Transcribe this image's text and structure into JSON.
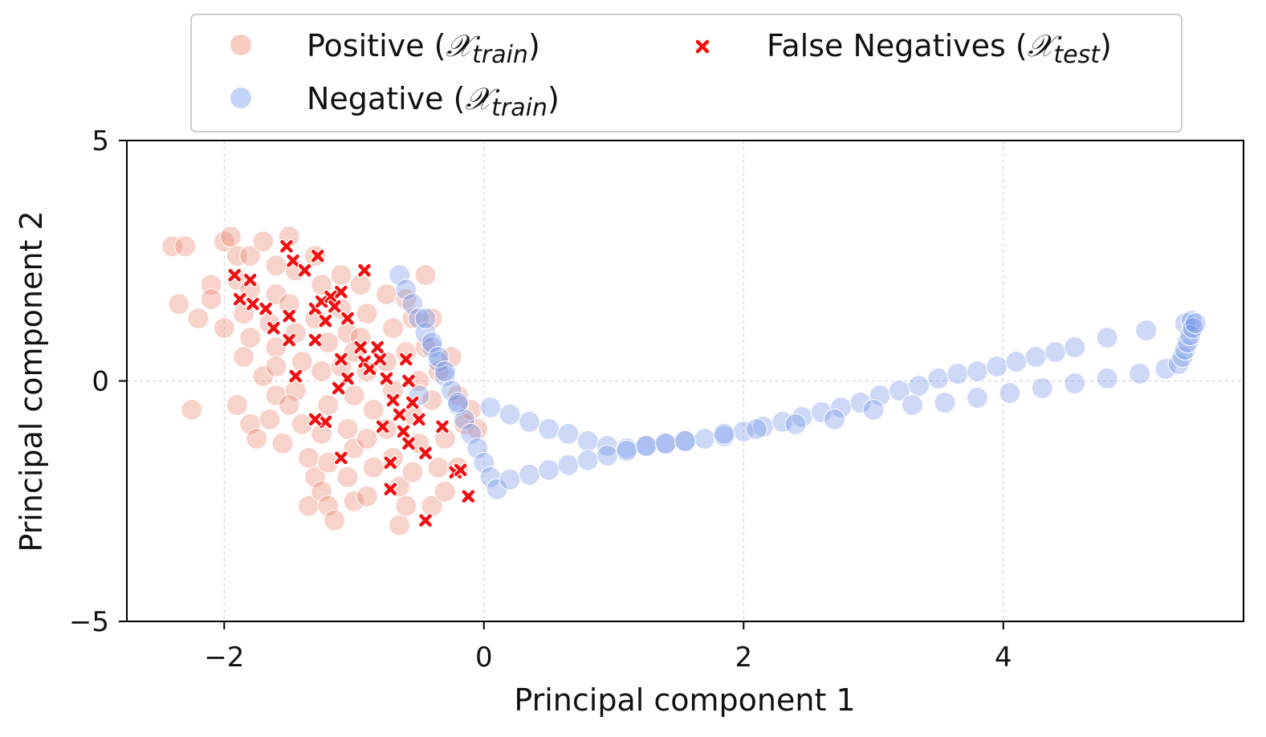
{
  "chart_data": {
    "type": "scatter",
    "title": "",
    "xlabel": "Principal component 1",
    "ylabel": "Principal component 2",
    "xlim": [
      -2.75,
      5.85
    ],
    "ylim": [
      -5,
      5
    ],
    "xticks": [
      -2,
      0,
      2,
      4
    ],
    "yticks": [
      -5,
      0,
      5
    ],
    "xtick_labels": [
      "−2",
      "0",
      "2",
      "4"
    ],
    "ytick_labels": [
      "−5",
      "0",
      "5"
    ],
    "grid": true,
    "legend": {
      "placement": "top-center",
      "columns": 2,
      "entries": [
        {
          "main": "Positive (",
          "script": "𝒳",
          "sub": "train",
          "close": ")"
        },
        {
          "main": "False Negatives (",
          "script": "𝒳",
          "sub": "test",
          "close": ")"
        },
        {
          "main": "Negative (",
          "script": "𝒳",
          "sub": "train",
          "close": ")"
        }
      ]
    },
    "series": [
      {
        "name": "Positive (X_train)",
        "marker": "circle",
        "color": "#e8806a",
        "points": [
          [
            -2.4,
            2.8
          ],
          [
            -2.3,
            2.8
          ],
          [
            -2.35,
            1.6
          ],
          [
            -2.25,
            -0.6
          ],
          [
            -2.0,
            2.9
          ],
          [
            -1.95,
            3.0
          ],
          [
            -2.1,
            2.0
          ],
          [
            -2.1,
            1.7
          ],
          [
            -2.2,
            1.3
          ],
          [
            -2.0,
            1.1
          ],
          [
            -1.9,
            2.6
          ],
          [
            -1.9,
            2.1
          ],
          [
            -1.8,
            2.6
          ],
          [
            -1.8,
            1.9
          ],
          [
            -1.85,
            1.4
          ],
          [
            -1.8,
            0.9
          ],
          [
            -1.85,
            0.5
          ],
          [
            -1.9,
            -0.5
          ],
          [
            -1.8,
            -0.9
          ],
          [
            -1.75,
            -1.2
          ],
          [
            -1.7,
            2.9
          ],
          [
            -1.6,
            2.4
          ],
          [
            -1.6,
            1.8
          ],
          [
            -1.65,
            1.2
          ],
          [
            -1.6,
            0.7
          ],
          [
            -1.7,
            0.1
          ],
          [
            -1.6,
            -0.3
          ],
          [
            -1.65,
            -0.8
          ],
          [
            -1.55,
            -1.3
          ],
          [
            -1.5,
            3.0
          ],
          [
            -1.45,
            2.3
          ],
          [
            -1.5,
            1.6
          ],
          [
            -1.45,
            1.0
          ],
          [
            -1.4,
            0.4
          ],
          [
            -1.45,
            -0.2
          ],
          [
            -1.4,
            -0.9
          ],
          [
            -1.35,
            -1.6
          ],
          [
            -1.3,
            -2.0
          ],
          [
            -1.35,
            -2.6
          ],
          [
            -1.3,
            2.6
          ],
          [
            -1.25,
            2.0
          ],
          [
            -1.3,
            1.3
          ],
          [
            -1.2,
            0.8
          ],
          [
            -1.25,
            0.2
          ],
          [
            -1.2,
            -0.5
          ],
          [
            -1.25,
            -1.1
          ],
          [
            -1.2,
            -1.7
          ],
          [
            -1.25,
            -2.3
          ],
          [
            -1.2,
            -2.6
          ],
          [
            -1.1,
            2.2
          ],
          [
            -1.1,
            1.5
          ],
          [
            -1.05,
            1.0
          ],
          [
            -1.1,
            0.3
          ],
          [
            -1.0,
            -0.3
          ],
          [
            -1.05,
            -1.0
          ],
          [
            -1.0,
            -1.4
          ],
          [
            -1.05,
            -2.0
          ],
          [
            -1.0,
            -2.5
          ],
          [
            -0.95,
            2.0
          ],
          [
            -0.9,
            1.4
          ],
          [
            -0.95,
            0.9
          ],
          [
            -0.9,
            0.2
          ],
          [
            -0.85,
            -0.6
          ],
          [
            -0.9,
            -1.2
          ],
          [
            -0.85,
            -1.8
          ],
          [
            -0.9,
            -2.4
          ],
          [
            -0.75,
            1.8
          ],
          [
            -0.7,
            1.1
          ],
          [
            -0.75,
            0.4
          ],
          [
            -0.7,
            -0.2
          ],
          [
            -0.75,
            -1.0
          ],
          [
            -0.7,
            -1.6
          ],
          [
            -0.65,
            -2.2
          ],
          [
            -0.6,
            1.7
          ],
          [
            -0.55,
            1.3
          ],
          [
            -0.6,
            0.6
          ],
          [
            -0.5,
            0.0
          ],
          [
            -0.55,
            -0.7
          ],
          [
            -0.5,
            -1.3
          ],
          [
            -0.55,
            -1.9
          ],
          [
            -0.6,
            -2.6
          ],
          [
            -0.65,
            -3.0
          ],
          [
            -0.4,
            1.3
          ],
          [
            -0.45,
            0.7
          ],
          [
            -0.35,
            0.2
          ],
          [
            -0.4,
            -0.4
          ],
          [
            -0.3,
            -1.2
          ],
          [
            -0.35,
            -1.8
          ],
          [
            -0.4,
            -2.6
          ],
          [
            -0.25,
            0.5
          ],
          [
            -0.2,
            -0.3
          ],
          [
            -0.15,
            -0.9
          ],
          [
            -0.2,
            -1.8
          ],
          [
            -0.3,
            -2.3
          ],
          [
            -0.1,
            -0.6
          ],
          [
            -0.05,
            -1.0
          ],
          [
            -0.45,
            2.2
          ],
          [
            -1.5,
            -0.5
          ],
          [
            -1.6,
            0.3
          ],
          [
            -1.0,
            0.6
          ],
          [
            -1.15,
            -2.9
          ]
        ]
      },
      {
        "name": "Negative (X_train)",
        "marker": "circle",
        "color": "#6f93e8",
        "points": [
          [
            -0.65,
            2.2
          ],
          [
            -0.6,
            1.9
          ],
          [
            -0.55,
            1.6
          ],
          [
            -0.5,
            1.3
          ],
          [
            -0.45,
            1.0
          ],
          [
            -0.4,
            0.7
          ],
          [
            -0.35,
            0.4
          ],
          [
            -0.3,
            0.1
          ],
          [
            -0.25,
            -0.2
          ],
          [
            -0.2,
            -0.5
          ],
          [
            -0.15,
            -0.8
          ],
          [
            -0.1,
            -1.1
          ],
          [
            -0.05,
            -1.4
          ],
          [
            0.0,
            -1.7
          ],
          [
            0.05,
            -2.0
          ],
          [
            0.1,
            -2.25
          ],
          [
            -0.45,
            1.3
          ],
          [
            -0.4,
            0.8
          ],
          [
            -0.35,
            0.5
          ],
          [
            -0.3,
            0.2
          ],
          [
            -0.5,
            -0.3
          ],
          [
            -0.2,
            -0.45
          ],
          [
            0.05,
            -0.55
          ],
          [
            0.2,
            -0.7
          ],
          [
            0.35,
            -0.85
          ],
          [
            0.5,
            -1.0
          ],
          [
            0.65,
            -1.1
          ],
          [
            0.8,
            -1.25
          ],
          [
            0.95,
            -1.35
          ],
          [
            1.1,
            -1.4
          ],
          [
            1.25,
            -1.35
          ],
          [
            1.4,
            -1.3
          ],
          [
            1.55,
            -1.25
          ],
          [
            1.7,
            -1.2
          ],
          [
            1.85,
            -1.15
          ],
          [
            2.0,
            -1.05
          ],
          [
            2.15,
            -0.95
          ],
          [
            2.3,
            -0.85
          ],
          [
            2.45,
            -0.75
          ],
          [
            2.6,
            -0.65
          ],
          [
            2.75,
            -0.55
          ],
          [
            2.9,
            -0.45
          ],
          [
            3.05,
            -0.3
          ],
          [
            3.2,
            -0.2
          ],
          [
            3.35,
            -0.1
          ],
          [
            3.5,
            0.05
          ],
          [
            3.65,
            0.15
          ],
          [
            3.8,
            0.2
          ],
          [
            3.95,
            0.3
          ],
          [
            4.1,
            0.4
          ],
          [
            4.25,
            0.5
          ],
          [
            4.4,
            0.6
          ],
          [
            4.55,
            0.7
          ],
          [
            4.8,
            0.9
          ],
          [
            5.1,
            1.05
          ],
          [
            5.4,
            1.2
          ],
          [
            5.45,
            1.25
          ],
          [
            0.2,
            -2.05
          ],
          [
            0.35,
            -1.95
          ],
          [
            0.5,
            -1.85
          ],
          [
            0.65,
            -1.75
          ],
          [
            0.8,
            -1.65
          ],
          [
            0.95,
            -1.55
          ],
          [
            1.1,
            -1.45
          ],
          [
            1.25,
            -1.35
          ],
          [
            1.4,
            -1.3
          ],
          [
            1.55,
            -1.25
          ],
          [
            1.85,
            -1.1
          ],
          [
            2.1,
            -1.0
          ],
          [
            2.4,
            -0.9
          ],
          [
            2.7,
            -0.8
          ],
          [
            3.0,
            -0.6
          ],
          [
            3.3,
            -0.5
          ],
          [
            3.55,
            -0.45
          ],
          [
            3.8,
            -0.35
          ],
          [
            4.05,
            -0.25
          ],
          [
            4.3,
            -0.15
          ],
          [
            4.55,
            -0.05
          ],
          [
            4.8,
            0.05
          ],
          [
            5.05,
            0.15
          ],
          [
            5.25,
            0.25
          ],
          [
            5.35,
            0.35
          ],
          [
            5.38,
            0.5
          ],
          [
            5.4,
            0.65
          ],
          [
            5.42,
            0.8
          ],
          [
            5.44,
            0.95
          ],
          [
            5.46,
            1.1
          ],
          [
            5.48,
            1.2
          ]
        ]
      },
      {
        "name": "False Negatives (X_test)",
        "marker": "x",
        "color": "#ee1111",
        "points": [
          [
            -1.92,
            2.2
          ],
          [
            -1.8,
            2.1
          ],
          [
            -1.88,
            1.7
          ],
          [
            -1.78,
            1.6
          ],
          [
            -1.68,
            1.5
          ],
          [
            -1.62,
            1.1
          ],
          [
            -1.52,
            2.8
          ],
          [
            -1.47,
            2.5
          ],
          [
            -1.38,
            2.3
          ],
          [
            -1.3,
            1.5
          ],
          [
            -1.5,
            1.35
          ],
          [
            -1.5,
            0.85
          ],
          [
            -1.45,
            0.1
          ],
          [
            -1.28,
            2.6
          ],
          [
            -1.25,
            1.65
          ],
          [
            -1.22,
            1.25
          ],
          [
            -1.18,
            1.75
          ],
          [
            -1.15,
            1.55
          ],
          [
            -1.1,
            1.85
          ],
          [
            -1.05,
            1.3
          ],
          [
            -1.3,
            0.85
          ],
          [
            -1.1,
            0.45
          ],
          [
            -1.05,
            0.05
          ],
          [
            -1.12,
            -0.15
          ],
          [
            -0.95,
            0.7
          ],
          [
            -0.92,
            0.4
          ],
          [
            -0.88,
            0.25
          ],
          [
            -0.82,
            0.7
          ],
          [
            -0.8,
            0.45
          ],
          [
            -0.75,
            0.05
          ],
          [
            -0.7,
            -0.4
          ],
          [
            -0.65,
            -0.7
          ],
          [
            -0.6,
            0.45
          ],
          [
            -0.58,
            0.0
          ],
          [
            -0.55,
            -0.45
          ],
          [
            -0.5,
            -0.8
          ],
          [
            -0.62,
            -1.05
          ],
          [
            -0.58,
            -1.3
          ],
          [
            -0.78,
            -0.95
          ],
          [
            -0.72,
            -1.7
          ],
          [
            -0.45,
            -1.5
          ],
          [
            -0.32,
            -0.95
          ],
          [
            -0.22,
            -1.9
          ],
          [
            -0.18,
            -1.85
          ],
          [
            -0.12,
            -2.4
          ],
          [
            -0.45,
            -2.9
          ],
          [
            -0.72,
            -2.25
          ],
          [
            -1.1,
            -1.6
          ],
          [
            -1.22,
            -0.85
          ],
          [
            -1.3,
            -0.8
          ],
          [
            -0.92,
            2.3
          ]
        ]
      }
    ]
  }
}
